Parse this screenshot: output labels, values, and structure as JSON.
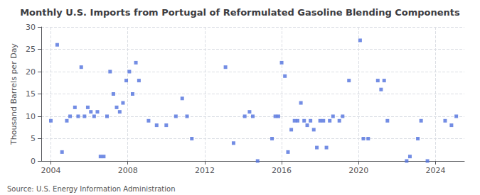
{
  "chart_data": {
    "type": "scatter",
    "title": "Monthly U.S. Imports from Portugal of Reformulated Gasoline Blending Components",
    "ylabel": "Thousand Barrels per Day",
    "annotations": [
      "Source: U.S. Energy Information Administration"
    ],
    "marker": "square",
    "grid": true,
    "xlim": [
      2003.5,
      2025.5
    ],
    "xticks": [
      2004,
      2008,
      2012,
      2016,
      2020,
      2024
    ],
    "ylim": [
      0,
      30
    ],
    "yticks": [
      0,
      5,
      10,
      15,
      20,
      25,
      30
    ],
    "x": [
      2004.0,
      2004.33,
      2004.58,
      2004.83,
      2005.0,
      2005.25,
      2005.42,
      2005.58,
      2005.75,
      2005.92,
      2006.08,
      2006.25,
      2006.42,
      2006.58,
      2006.75,
      2006.92,
      2007.08,
      2007.25,
      2007.42,
      2007.58,
      2007.75,
      2007.92,
      2008.08,
      2008.25,
      2008.42,
      2008.58,
      2009.08,
      2009.5,
      2010.0,
      2010.5,
      2010.83,
      2011.08,
      2011.33,
      2013.08,
      2013.5,
      2014.08,
      2014.33,
      2014.5,
      2014.75,
      2015.5,
      2015.67,
      2015.83,
      2016.0,
      2016.17,
      2016.33,
      2016.5,
      2016.67,
      2016.83,
      2017.0,
      2017.17,
      2017.33,
      2017.5,
      2017.67,
      2017.83,
      2018.0,
      2018.17,
      2018.33,
      2018.5,
      2018.67,
      2019.0,
      2019.17,
      2019.5,
      2020.08,
      2020.25,
      2020.5,
      2021.0,
      2021.17,
      2021.33,
      2021.5,
      2022.5,
      2022.67,
      2023.08,
      2023.25,
      2023.58,
      2024.5,
      2024.83,
      2025.08
    ],
    "values": [
      9,
      26,
      2,
      9,
      10,
      12,
      10,
      21,
      10,
      12,
      11,
      10,
      11,
      1,
      1,
      10,
      20,
      15,
      12,
      11,
      13,
      18,
      20,
      15,
      22,
      18,
      9,
      8,
      8,
      10,
      14,
      10,
      5,
      21,
      4,
      10,
      11,
      10,
      0,
      5,
      10,
      10,
      22,
      19,
      2,
      7,
      9,
      9,
      13,
      9,
      8,
      9,
      7,
      3,
      9,
      9,
      3,
      9,
      10,
      9,
      10,
      18,
      27,
      5,
      5,
      18,
      16,
      18,
      9,
      0,
      1,
      5,
      9,
      0,
      9,
      8,
      10
    ]
  }
}
